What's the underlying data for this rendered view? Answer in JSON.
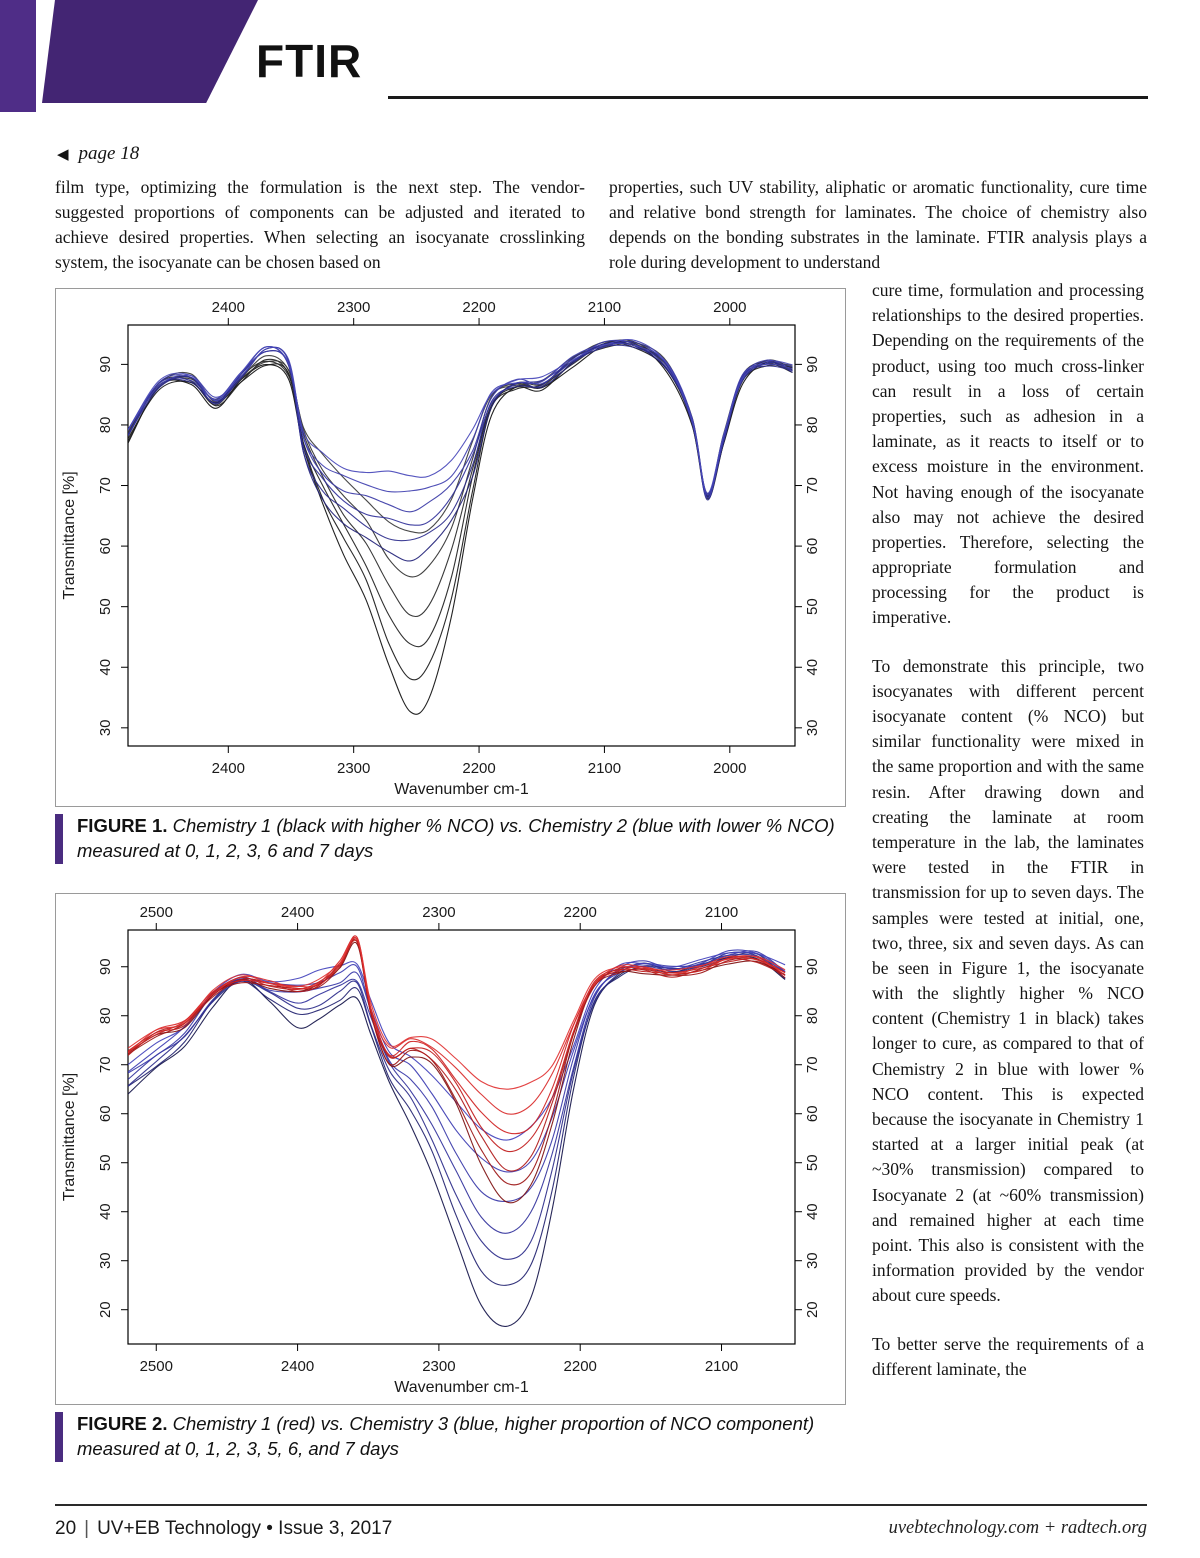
{
  "header": {
    "title": "FTIR",
    "page_ref_arrow": "◀",
    "page_ref_label": "page 18"
  },
  "intro": {
    "left": "film type, optimizing the formulation is the next step. The vendor-suggested proportions of components can be adjusted and iterated to achieve desired properties. When selecting an isocyanate crosslinking system, the isocyanate can be chosen based on",
    "right": "properties, such UV stability, aliphatic or aromatic functionality, cure time and relative bond strength for laminates. The choice of chemistry also depends on the bonding substrates in the laminate. FTIR analysis plays a role during development to understand"
  },
  "body": {
    "p1": "cure time, formulation and processing relationships to the desired properties. Depending on the requirements of the product, using too much cross-linker can result in a loss of certain properties, such as adhesion in a laminate, as it reacts to itself or to excess moisture in the environment. Not having enough of the isocyanate also may not achieve the desired properties. Therefore, selecting the appropriate formulation and processing for the product is imperative.",
    "p2": "To demonstrate this principle, two isocyanates with different percent isocyanate content (% NCO) but similar functionality were mixed in the same proportion and with the same resin. After drawing down and creating the laminate at room temperature in the lab, the laminates were tested in the FTIR in transmission for up to seven days. The samples were tested at initial, one, two, three, six and seven days. As can be seen in Figure 1, the isocyanate with the slightly higher % NCO content (Chemistry 1 in black) takes longer to cure, as compared to that of Chemistry 2 in blue with lower % NCO content. This is expected because the isocyanate in Chemistry 1 started at a larger initial peak (at ~30% transmission) compared to Isocyanate 2 (at ~60% transmission) and remained higher at each time point. This also is consistent with the information provided by the vendor about cure speeds.",
    "p3": "To better serve the requirements of a different laminate, the"
  },
  "figure1": {
    "caption_bold": "FIGURE 1.",
    "caption_italic": "Chemistry 1 (black with higher % NCO) vs. Chemistry 2 (blue with lower % NCO) measured at 0, 1, 2, 3, 6 and 7 days"
  },
  "figure2": {
    "caption_bold": "FIGURE 2.",
    "caption_italic": "Chemistry 1 (red) vs. Chemistry 3 (blue, higher proportion of NCO component) measured at 0, 1, 2, 3, 5, 6, and 7 days"
  },
  "footer": {
    "page_number": "20",
    "separator": "|",
    "publication": "UV+EB Technology • Issue 3, 2017",
    "right": "uvebtechnology.com  +  radtech.org"
  },
  "colors": {
    "purple_band": "#432573",
    "purple_bar": "#4f2d87",
    "caption_accent": "#4a2c80",
    "chem1_black": "#1a1a1a",
    "chem2_blue": "#32329a",
    "chem1_red": "#c42020",
    "chem3_blue": "#32329c"
  },
  "chart_data": [
    {
      "type": "line",
      "title": "Figure 1: FTIR transmittance spectra, Chemistry 1 vs Chemistry 2",
      "xlabel": "Wavenumber cm-1",
      "ylabel": "Transmittance [%]",
      "x_ticks": [
        2400,
        2300,
        2200,
        2100,
        2000
      ],
      "y_ticks": [
        30,
        40,
        50,
        60,
        70,
        80,
        90
      ],
      "x_range": [
        2480,
        1948
      ],
      "y_range": [
        27,
        96.5
      ],
      "grid": false,
      "legend": "none",
      "x_anchors": [
        2480,
        2455,
        2430,
        2410,
        2390,
        2370,
        2352,
        2340,
        2325,
        2308,
        2290,
        2272,
        2255,
        2240,
        2222,
        2205,
        2190,
        2170,
        2150,
        2125,
        2100,
        2075,
        2050,
        2030,
        2018,
        2005,
        1990,
        1970,
        1950
      ],
      "families": [
        {
          "name": "Chemistry 1 (black, higher % NCO)",
          "color": "#1a1a1a",
          "series_colors": [
            "#0f0f0f",
            "#181818",
            "#202020",
            "#282828",
            "#303030",
            "#383838"
          ],
          "days": [
            0,
            1,
            2,
            3,
            6,
            7
          ],
          "blends": [
            0,
            0.18,
            0.36,
            0.55,
            0.76,
            1
          ],
          "base": [
            77,
            86,
            87,
            83,
            87,
            90,
            88,
            76,
            67,
            59,
            51,
            40,
            33,
            35,
            48,
            68,
            82,
            86,
            86,
            90,
            93,
            93,
            89,
            80,
            68,
            77,
            87,
            90,
            89
          ],
          "final": [
            79,
            87,
            88,
            84,
            88,
            91,
            89,
            80,
            75,
            71,
            68,
            64,
            62,
            63,
            68,
            77,
            85,
            87,
            87,
            91,
            93.5,
            93.5,
            90,
            81,
            68.5,
            78,
            88,
            90.5,
            89.5
          ]
        },
        {
          "name": "Chemistry 2 (blue, lower % NCO)",
          "color": "#32329a",
          "series_colors": [
            "#23237a",
            "#2b2b8c",
            "#32329a",
            "#3939a6",
            "#4040b0",
            "#4848ba"
          ],
          "days": [
            0,
            1,
            2,
            3,
            6,
            7
          ],
          "blends": [
            0,
            0.2,
            0.4,
            0.6,
            0.8,
            1
          ],
          "base": [
            78,
            86.5,
            87.5,
            83.5,
            88,
            92.5,
            90,
            75,
            68,
            64,
            61,
            59,
            58,
            59.5,
            64,
            72,
            83,
            86.5,
            86.5,
            90.5,
            93,
            93,
            89.5,
            80.5,
            68,
            77.5,
            87.5,
            90,
            89
          ],
          "final": [
            79.5,
            87,
            88,
            84.5,
            88.5,
            92.5,
            90.5,
            79,
            75,
            73,
            72.5,
            72,
            71.5,
            72,
            74,
            79,
            85.5,
            87.5,
            87.5,
            91,
            93.5,
            93.5,
            90,
            81,
            68.5,
            78,
            88,
            90.5,
            89.5
          ]
        }
      ]
    },
    {
      "type": "line",
      "title": "Figure 2: FTIR transmittance spectra, Chemistry 1 vs Chemistry 3",
      "xlabel": "Wavenumber cm-1",
      "ylabel": "Transmittance [%]",
      "x_ticks": [
        2500,
        2400,
        2300,
        2200,
        2100
      ],
      "y_ticks": [
        20,
        30,
        40,
        50,
        60,
        70,
        80,
        90
      ],
      "x_range": [
        2520,
        2048
      ],
      "y_range": [
        13,
        97.5
      ],
      "grid": false,
      "legend": "none",
      "x_anchors": [
        2520,
        2500,
        2480,
        2460,
        2440,
        2420,
        2400,
        2385,
        2370,
        2358,
        2348,
        2335,
        2320,
        2305,
        2288,
        2270,
        2252,
        2235,
        2220,
        2205,
        2190,
        2172,
        2155,
        2135,
        2115,
        2095,
        2075,
        2055
      ],
      "families": [
        {
          "name": "Chemistry 3 (blue, higher proportion of NCO component)",
          "color": "#32329c",
          "series_colors": [
            "#15154a",
            "#222270",
            "#2b2b8a",
            "#32329c",
            "#3737a8",
            "#3c3cb2",
            "#4242bc"
          ],
          "days": [
            0,
            1,
            2,
            3,
            5,
            6,
            7
          ],
          "blends": [
            0,
            0.2,
            0.35,
            0.5,
            0.65,
            0.82,
            1
          ],
          "base": [
            64,
            69,
            74,
            82,
            87,
            83,
            78,
            79,
            82,
            84,
            76,
            66,
            58,
            48,
            34,
            21,
            17,
            22,
            40,
            65,
            82,
            88,
            90,
            89,
            90,
            92,
            92,
            87
          ],
          "final": [
            70,
            74,
            78,
            85,
            88,
            87,
            88,
            89,
            90,
            91,
            83,
            74,
            72,
            68,
            62,
            57,
            55,
            57,
            63,
            74,
            85,
            90,
            91,
            90,
            91,
            93,
            93,
            90
          ]
        },
        {
          "name": "Chemistry 1 (red)",
          "color": "#c42020",
          "series_colors": [
            "#7e1010",
            "#9c1515",
            "#b01919",
            "#c11d1d",
            "#cf2222",
            "#d92a2a",
            "#e13333"
          ],
          "days": [
            0,
            1,
            2,
            3,
            5,
            6,
            7
          ],
          "blends": [
            0,
            0.15,
            0.3,
            0.45,
            0.6,
            0.8,
            1
          ],
          "base": [
            72,
            76,
            78,
            84,
            87,
            86,
            85,
            86,
            90,
            95,
            80,
            70,
            72,
            70,
            62,
            50,
            42,
            45,
            58,
            75,
            86,
            89,
            89,
            88,
            89,
            91,
            91,
            88
          ],
          "final": [
            73,
            77,
            79,
            85,
            88,
            87,
            86,
            87,
            91,
            96,
            82,
            74,
            76,
            75,
            71,
            67,
            65,
            66,
            70,
            79,
            87,
            90,
            90,
            89,
            90,
            92,
            92,
            89
          ]
        }
      ]
    }
  ]
}
